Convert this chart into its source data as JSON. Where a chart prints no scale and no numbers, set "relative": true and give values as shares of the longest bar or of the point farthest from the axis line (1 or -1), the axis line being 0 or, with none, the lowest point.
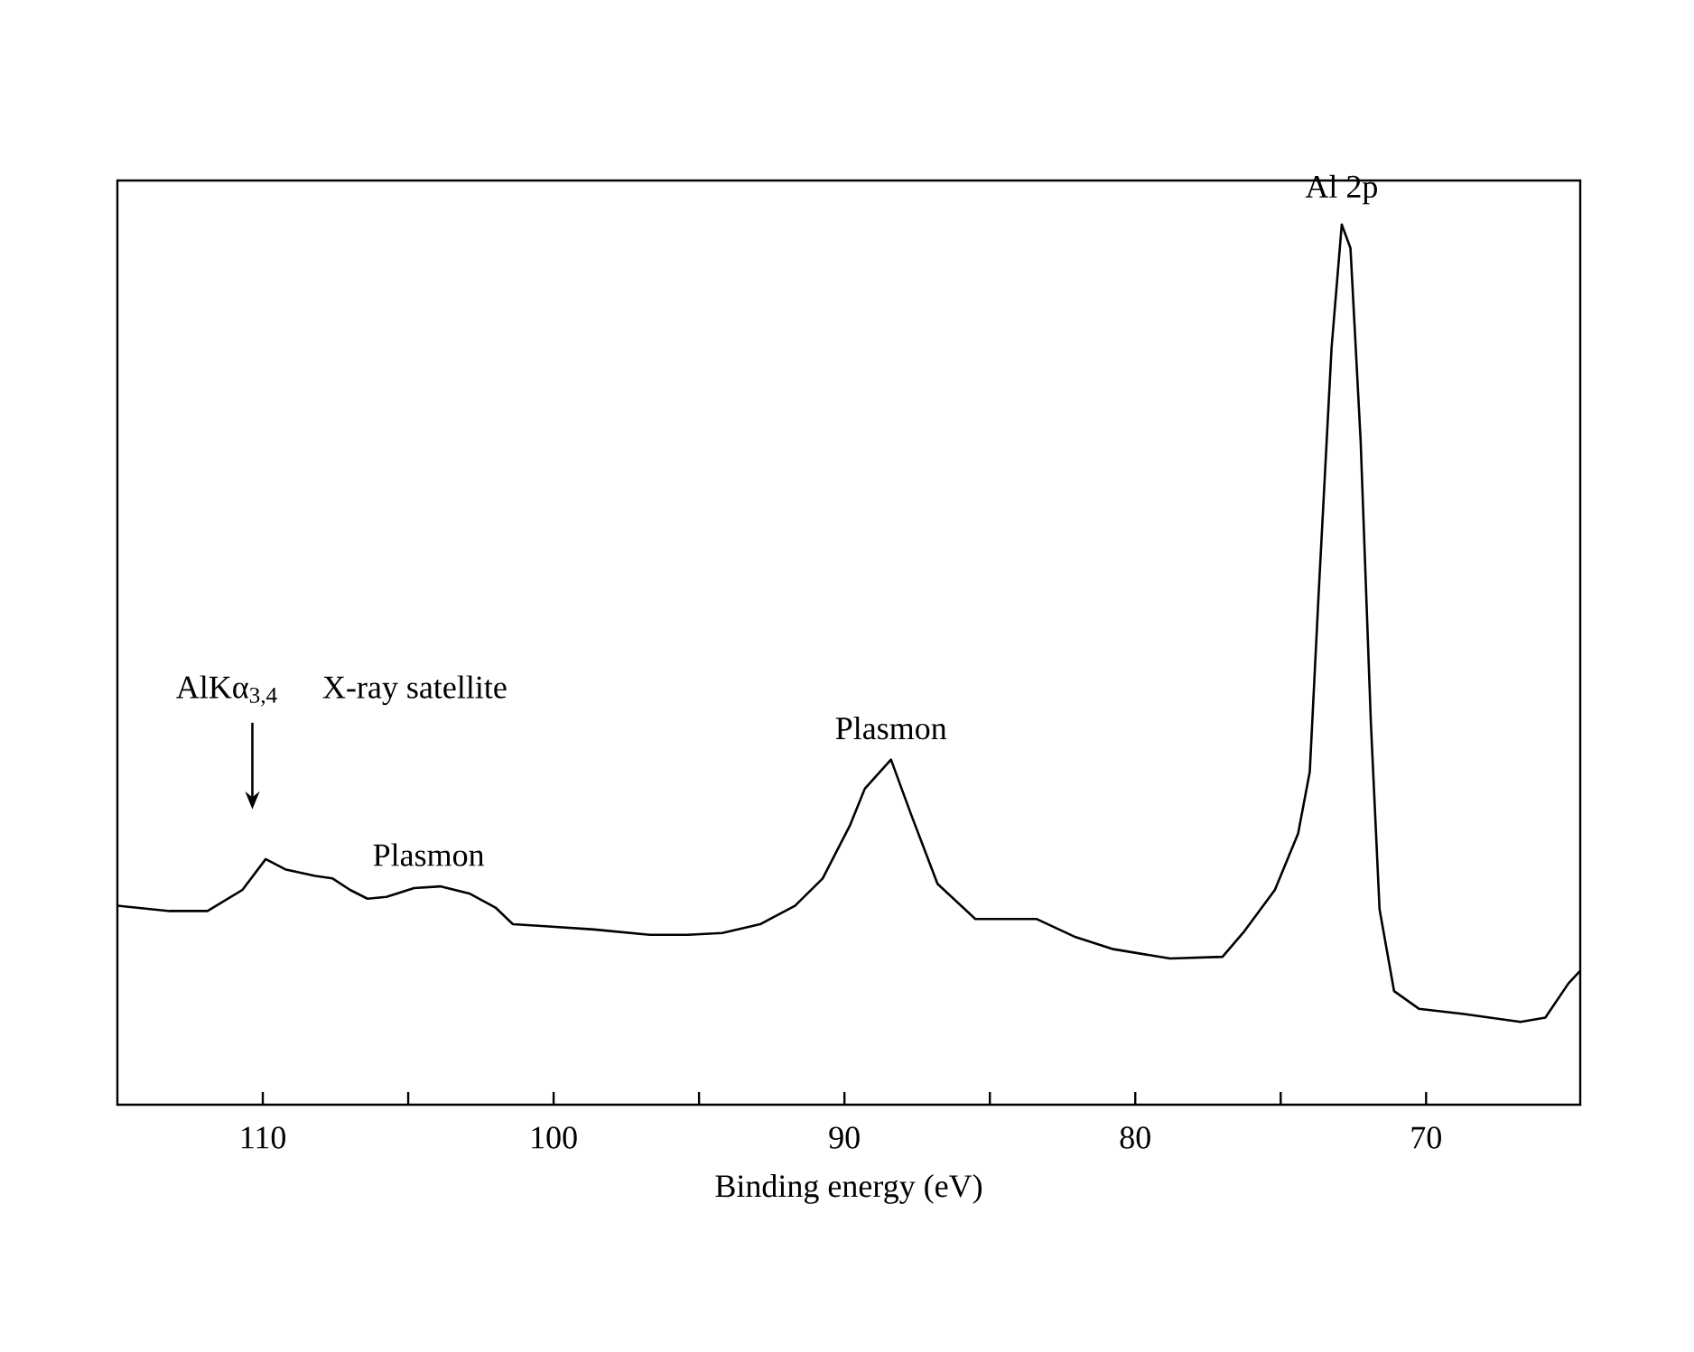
{
  "chart_data": {
    "type": "line",
    "relative": true,
    "xlabel": "Binding energy (eV)",
    "xlim": [
      115,
      64.7
    ],
    "xticks": [
      110,
      {
        "value": 105,
        "label": null
      },
      100,
      {
        "value": 95,
        "label": null
      },
      90,
      {
        "value": 85,
        "label": null
      },
      80,
      {
        "value": 75,
        "label": null
      },
      70
    ],
    "x": [
      115,
      113.2,
      111.9,
      110.7,
      109.9,
      109.2,
      108.2,
      107.6,
      107,
      106.4,
      105.75,
      104.8,
      103.9,
      102.9,
      102,
      101.4,
      100.4,
      98.6,
      96.7,
      95.4,
      94.2,
      92.9,
      91.7,
      90.75,
      89.8,
      89.3,
      88.4,
      87.7,
      86.8,
      85.5,
      83.4,
      82.1,
      80.8,
      78.8,
      77,
      76.25,
      75.2,
      74.4,
      74,
      73.7,
      73.25,
      72.9,
      72.6,
      72.25,
      71.9,
      71.6,
      71.1,
      70.25,
      68.7,
      66.75,
      65.9,
      65.1,
      64.7
    ],
    "series": [
      {
        "color": "#000000",
        "values": [
          0.226,
          0.22,
          0.22,
          0.244,
          0.279,
          0.267,
          0.26,
          0.257,
          0.244,
          0.234,
          0.236,
          0.246,
          0.248,
          0.24,
          0.224,
          0.205,
          0.203,
          0.199,
          0.193,
          0.193,
          0.195,
          0.205,
          0.226,
          0.257,
          0.318,
          0.359,
          0.392,
          0.329,
          0.251,
          0.211,
          0.211,
          0.191,
          0.177,
          0.166,
          0.168,
          0.197,
          0.244,
          0.308,
          0.378,
          0.577,
          0.86,
          1.0,
          0.973,
          0.754,
          0.435,
          0.222,
          0.129,
          0.109,
          0.103,
          0.094,
          0.099,
          0.138,
          0.152
        ]
      }
    ],
    "annotations": [
      {
        "text": "Al 2p",
        "x": 72.9,
        "y": 1.0
      },
      {
        "text": "Plasmon",
        "x": 88.4,
        "y": 0.392
      },
      {
        "text": "Plasmon",
        "x": 104.3,
        "y": 0.248
      },
      "AlKα$_{3,4}$",
      "X-ray satellite"
    ],
    "grid": false,
    "marker": "none",
    "line_style": "solid"
  }
}
